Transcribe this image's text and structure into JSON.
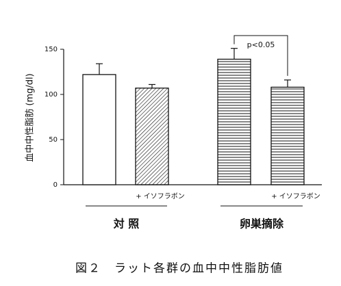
{
  "chart_data": {
    "type": "bar",
    "title": "図２　ラット各群の血中中性脂肪値",
    "ylabel": "血中中性脂肪 (mg/dl)",
    "categories": [
      null,
      "+ イソフラボン",
      null,
      "+ イソフラボン"
    ],
    "groups": [
      "対 照",
      "卵巣摘除"
    ],
    "values": [
      122,
      107,
      139,
      108
    ],
    "errors": [
      12,
      4,
      12,
      8
    ],
    "patterns": [
      "none",
      "diagonal",
      "horizontal",
      "horizontal"
    ],
    "color": "#111111",
    "ylim": [
      0,
      150
    ],
    "yticks": [
      0,
      50,
      100,
      150
    ],
    "annotation": "p<0.05"
  }
}
